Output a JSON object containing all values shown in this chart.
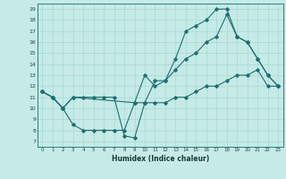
{
  "title": "",
  "xlabel": "Humidex (Indice chaleur)",
  "bg_color": "#c5eae7",
  "grid_color": "#a8d8d4",
  "line_color": "#1e7070",
  "xlim": [
    -0.5,
    23.5
  ],
  "ylim": [
    6.5,
    19.5
  ],
  "xticks": [
    0,
    1,
    2,
    3,
    4,
    5,
    6,
    7,
    8,
    9,
    10,
    11,
    12,
    13,
    14,
    15,
    16,
    17,
    18,
    19,
    20,
    21,
    22,
    23
  ],
  "yticks": [
    7,
    8,
    9,
    10,
    11,
    12,
    13,
    14,
    15,
    16,
    17,
    18,
    19
  ],
  "line1_x": [
    0,
    1,
    2,
    3,
    4,
    5,
    6,
    7,
    8,
    9,
    10,
    11,
    12,
    13,
    14,
    15,
    16,
    17,
    18,
    19,
    20,
    21,
    22,
    23
  ],
  "line1_y": [
    11.5,
    11.0,
    10.0,
    11.0,
    11.0,
    11.0,
    11.0,
    11.0,
    7.5,
    7.3,
    10.5,
    12.5,
    12.5,
    14.5,
    17.0,
    17.5,
    18.0,
    19.0,
    19.0,
    16.5,
    16.0,
    14.5,
    13.0,
    12.0
  ],
  "line2_x": [
    0,
    1,
    2,
    3,
    4,
    5,
    6,
    7,
    8,
    9,
    10,
    11,
    12,
    13,
    14,
    15,
    16,
    17,
    18,
    19,
    20,
    21,
    22,
    23
  ],
  "line2_y": [
    11.5,
    11.0,
    10.0,
    8.5,
    8.0,
    8.0,
    8.0,
    8.0,
    8.0,
    10.5,
    13.0,
    12.0,
    12.5,
    13.5,
    14.5,
    15.0,
    16.0,
    16.5,
    18.5,
    16.5,
    16.0,
    14.5,
    13.0,
    12.0
  ],
  "line3_x": [
    0,
    1,
    2,
    3,
    9,
    10,
    11,
    12,
    13,
    14,
    15,
    16,
    17,
    18,
    19,
    20,
    21,
    22,
    23
  ],
  "line3_y": [
    11.5,
    11.0,
    10.0,
    11.0,
    10.5,
    10.5,
    10.5,
    10.5,
    11.0,
    11.0,
    11.5,
    12.0,
    12.0,
    12.5,
    13.0,
    13.0,
    13.5,
    12.0,
    12.0
  ]
}
